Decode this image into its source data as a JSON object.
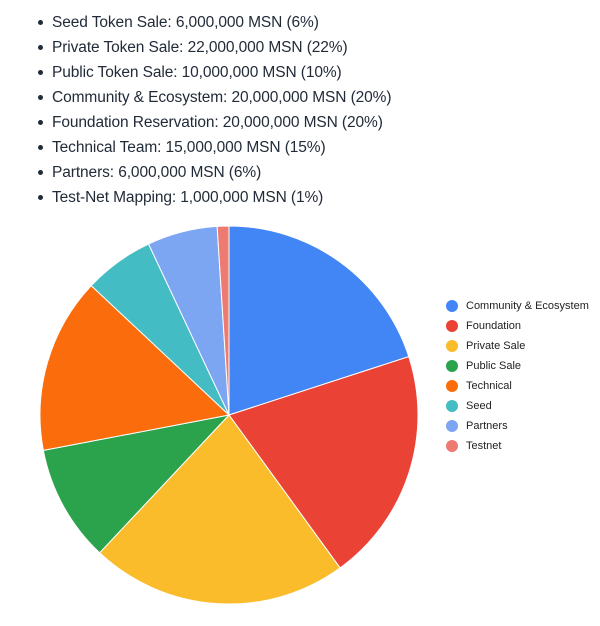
{
  "allocation_list": {
    "items": [
      "Seed Token Sale: 6,000,000 MSN (6%)",
      "Private Token Sale: 22,000,000 MSN (22%)",
      "Public Token Sale: 10,000,000 MSN (10%)",
      "Community & Ecosystem: 20,000,000 MSN (20%)",
      "Foundation Reservation: 20,000,000 MSN (20%)",
      "Technical Team: 15,000,000 MSN (15%)",
      "Partners: 6,000,000 MSN (6%)",
      "Test-Net Mapping: 1,000,000 MSN (1%)"
    ]
  },
  "chart_data": {
    "type": "pie",
    "title": "",
    "start_angle_deg": 0,
    "direction": "clockwise",
    "legend_position": "right",
    "slice_border_color": "#ffffff",
    "slices": [
      {
        "label": "Community & Ecosystem",
        "value_pct": 20,
        "color": "#4285F4"
      },
      {
        "label": "Foundation",
        "value_pct": 20,
        "color": "#EA4335"
      },
      {
        "label": "Private Sale",
        "value_pct": 22,
        "color": "#FBBC2C"
      },
      {
        "label": "Public Sale",
        "value_pct": 10,
        "color": "#2BA24C"
      },
      {
        "label": "Technical",
        "value_pct": 15,
        "color": "#FB6D0C"
      },
      {
        "label": "Seed",
        "value_pct": 6,
        "color": "#44BCC3"
      },
      {
        "label": "Partners",
        "value_pct": 6,
        "color": "#7CA5F2"
      },
      {
        "label": "Testnet",
        "value_pct": 1,
        "color": "#ED7B72"
      }
    ]
  }
}
